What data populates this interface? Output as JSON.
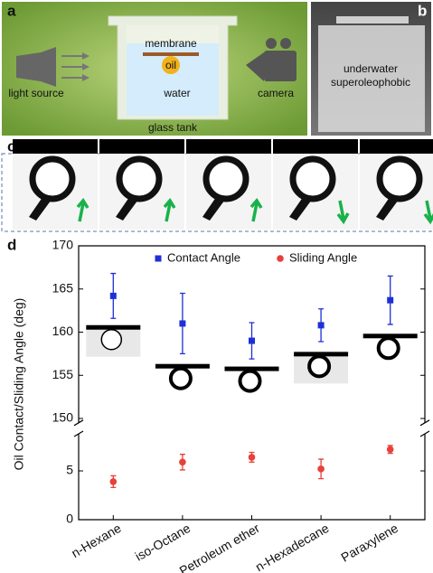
{
  "panel_a": {
    "label": "a",
    "membrane": "membrane",
    "oil": "oil",
    "water": "water",
    "light_source": "light source",
    "camera": "camera",
    "glass_tank": "glass tank"
  },
  "panel_b": {
    "label": "b",
    "text_1": "underwater",
    "text_2": "superoleophobic"
  },
  "panel_c": {
    "label": "c"
  },
  "chart_data": {
    "type": "errorbar",
    "panel_label": "d",
    "y_label": "Oil Contact/Sliding Angle (deg)",
    "categories": [
      "n-Hexane",
      "iso-Octane",
      "Petroleum ether",
      "n-Hexadecane",
      "Paraxylene"
    ],
    "y_segments": [
      {
        "ylim": [
          0,
          8.8
        ],
        "yticks": [
          0,
          5
        ]
      },
      {
        "ylim": [
          149.5,
          170
        ],
        "yticks": [
          150,
          155,
          160,
          165,
          170
        ]
      }
    ],
    "series": [
      {
        "name": "Contact Angle",
        "color": "#1f2fd6",
        "marker": "square",
        "segment": 1,
        "values": [
          164.2,
          161.0,
          159.0,
          160.8,
          163.7
        ],
        "errors": [
          2.6,
          3.5,
          2.1,
          1.9,
          2.8
        ]
      },
      {
        "name": "Sliding Angle",
        "color": "#e8403a",
        "marker": "circle",
        "segment": 0,
        "values": [
          3.9,
          5.9,
          6.4,
          5.2,
          7.2
        ],
        "errors": [
          0.6,
          0.8,
          0.5,
          1.0,
          0.4
        ]
      }
    ]
  }
}
